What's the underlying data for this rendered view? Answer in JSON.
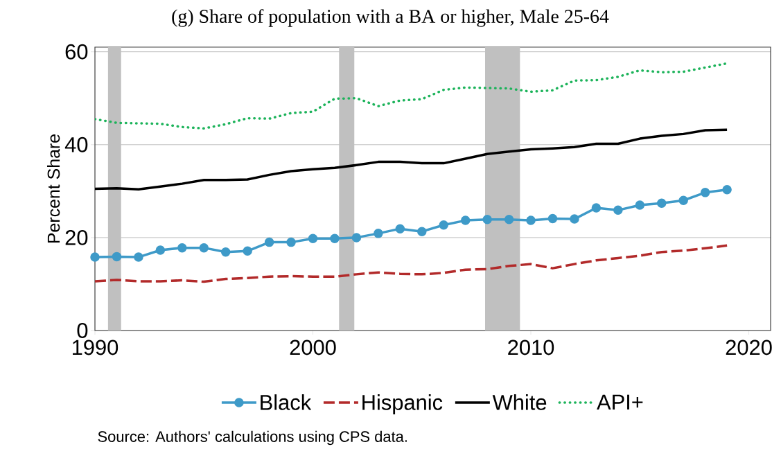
{
  "chart_data": {
    "type": "line",
    "title": "(g) Share of population with a BA or higher, Male 25-64",
    "ylabel": "Percent Share",
    "x": [
      1990,
      1991,
      1992,
      1993,
      1994,
      1995,
      1996,
      1997,
      1998,
      1999,
      2000,
      2001,
      2002,
      2003,
      2004,
      2005,
      2006,
      2007,
      2008,
      2009,
      2010,
      2011,
      2012,
      2013,
      2014,
      2015,
      2016,
      2017,
      2018,
      2019
    ],
    "series": [
      {
        "name": "Black",
        "color": "#3e9ac8",
        "marker": "circle",
        "line_style": "solid",
        "values": [
          15.8,
          15.9,
          15.8,
          17.3,
          17.8,
          17.8,
          16.9,
          17.1,
          19.0,
          19.0,
          19.8,
          19.8,
          20.0,
          20.9,
          21.9,
          21.3,
          22.7,
          23.7,
          23.9,
          23.9,
          23.7,
          24.1,
          24.0,
          26.4,
          25.9,
          27.0,
          27.4,
          28.0,
          29.7,
          30.3
        ]
      },
      {
        "name": "Hispanic",
        "color": "#b22a2a",
        "marker": "none",
        "line_style": "dashed",
        "values": [
          10.6,
          10.9,
          10.6,
          10.6,
          10.8,
          10.5,
          11.1,
          11.3,
          11.6,
          11.7,
          11.6,
          11.6,
          12.1,
          12.5,
          12.2,
          12.1,
          12.4,
          13.1,
          13.2,
          13.9,
          14.3,
          13.4,
          14.3,
          15.1,
          15.6,
          16.1,
          16.9,
          17.2,
          17.7,
          18.3
        ]
      },
      {
        "name": "White",
        "color": "#000000",
        "marker": "none",
        "line_style": "solid",
        "values": [
          30.5,
          30.6,
          30.4,
          31.0,
          31.6,
          32.4,
          32.4,
          32.5,
          33.5,
          34.3,
          34.7,
          35.0,
          35.6,
          36.3,
          36.3,
          36.0,
          36.0,
          37.0,
          38.0,
          38.5,
          39.0,
          39.2,
          39.5,
          40.2,
          40.2,
          41.3,
          41.9,
          42.3,
          43.1,
          43.2
        ]
      },
      {
        "name": "API+",
        "color": "#1cb35a",
        "marker": "none",
        "line_style": "dotted",
        "values": [
          45.5,
          44.7,
          44.6,
          44.5,
          43.8,
          43.5,
          44.4,
          45.7,
          45.6,
          46.8,
          47.1,
          49.9,
          50.0,
          48.3,
          49.5,
          49.8,
          51.8,
          52.3,
          52.2,
          52.1,
          51.4,
          51.7,
          53.8,
          53.9,
          54.6,
          56.0,
          55.6,
          55.7,
          56.6,
          57.5
        ]
      }
    ],
    "bands": [
      {
        "axis": "x",
        "from": 1990.6,
        "to": 1991.2,
        "color": "#c0c0c0"
      },
      {
        "axis": "x",
        "from": 2001.2,
        "to": 2001.9,
        "color": "#c0c0c0"
      },
      {
        "axis": "x",
        "from": 2007.9,
        "to": 2009.5,
        "color": "#c0c0c0"
      }
    ],
    "xlim": [
      1990,
      2021
    ],
    "xticks": [
      1990,
      2000,
      2010,
      2020
    ],
    "ylim": [
      0,
      61
    ],
    "yticks": [
      0,
      20,
      40,
      60
    ],
    "grid": "y",
    "legend": "bottom",
    "annotations": [
      "Source: Authors' calculations using CPS data."
    ]
  }
}
